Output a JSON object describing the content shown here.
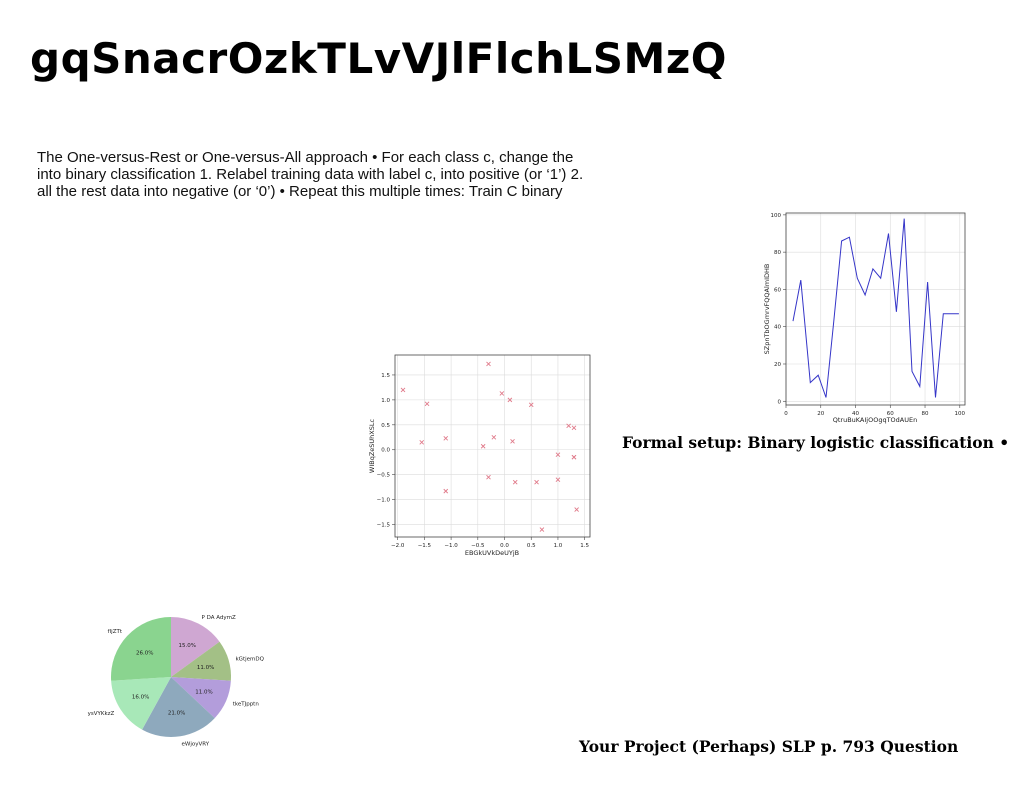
{
  "slide": {
    "title": "gqSnacrOzkTLvVJlFlchLSMzQ",
    "paragraph_lines": [
      "The One-versus-Rest or One-versus-All approach • For each class c, change the",
      "into binary classification 1. Relabel training data with label c, into positive (or ‘1’) 2.",
      "all the rest data into negative (or ‘0’) • Repeat this multiple times: Train C binary"
    ],
    "caption_right": "Formal setup: Binary logistic classification •",
    "caption_bottom": "Your Project (Perhaps) SLP p. 793 Question"
  },
  "chart_data": [
    {
      "type": "line",
      "xlabel": "QtruBuKAIjOOgqTOdAUEn",
      "ylabel": "SZpnTbOGmrvFQQAlmIDHB",
      "xlim": [
        0,
        103
      ],
      "ylim": [
        -2,
        101
      ],
      "xticks": [
        0,
        20,
        40,
        60,
        80,
        100
      ],
      "yticks": [
        0,
        20,
        40,
        60,
        80,
        100
      ],
      "grid": true,
      "color": "#3535c8",
      "x": [
        4,
        8.5,
        14,
        18.5,
        23,
        27.5,
        32,
        36.5,
        41,
        45.5,
        50,
        54.5,
        59,
        63.5,
        68,
        72.5,
        77,
        81.5,
        86,
        90.5,
        95,
        99.5
      ],
      "y": [
        43,
        65,
        10,
        14,
        2,
        43,
        86,
        88,
        66,
        57,
        71,
        66,
        90,
        48,
        98,
        16,
        8,
        64,
        2,
        47,
        47,
        47
      ]
    },
    {
      "type": "scatter",
      "xlabel": "EBGkUVkDeUYjB",
      "ylabel": "WIBqZeSUhXSLc",
      "xlim": [
        -2.05,
        1.6
      ],
      "ylim": [
        -1.75,
        1.9
      ],
      "xticks": [
        -2.0,
        -1.5,
        -1.0,
        -0.5,
        0.0,
        0.5,
        1.0,
        1.5
      ],
      "yticks": [
        -1.5,
        -1.0,
        -0.5,
        0.0,
        0.5,
        1.0,
        1.5
      ],
      "xtick_labels": [
        "−2.0",
        "−1.5",
        "−1.0",
        "−0.5",
        "0.0",
        "0.5",
        "1.0",
        "1.5"
      ],
      "ytick_labels": [
        "−1.5",
        "−1.0",
        "−0.5",
        "0.0",
        "0.5",
        "1.0",
        "1.5"
      ],
      "grid": true,
      "color": "#e07a8a",
      "x": [
        -1.9,
        -1.45,
        -1.55,
        -1.1,
        -1.1,
        -0.3,
        -0.05,
        0.1,
        0.5,
        -0.4,
        -0.2,
        0.15,
        -0.3,
        0.2,
        0.6,
        0.7,
        1.0,
        1.0,
        1.2,
        1.3,
        1.3,
        1.3,
        1.35
      ],
      "y": [
        1.2,
        0.92,
        0.15,
        0.23,
        -0.83,
        1.72,
        1.13,
        1.0,
        0.9,
        0.07,
        0.25,
        0.17,
        -0.55,
        -0.65,
        -0.65,
        -1.6,
        -0.1,
        -0.6,
        0.48,
        0.44,
        -0.15,
        -0.15,
        -1.2
      ]
    },
    {
      "type": "pie",
      "labels": [
        "P DA AdymZ",
        "kGtjemDQ",
        "tkeTJpptn",
        "eWjoyVRY",
        "ysVYKkzZ",
        "fIjZTt"
      ],
      "values": [
        15.0,
        11.0,
        11.0,
        21.0,
        16.0,
        26.0
      ],
      "pct_labels": [
        "15.0%",
        "11.0%",
        "11.0%",
        "21.0%",
        "16.0%",
        "26.0%"
      ],
      "colors": [
        "#cfa7d2",
        "#a3c086",
        "#b39ddb",
        "#8ea9bd",
        "#a8e8b8",
        "#8ad48f"
      ]
    }
  ]
}
